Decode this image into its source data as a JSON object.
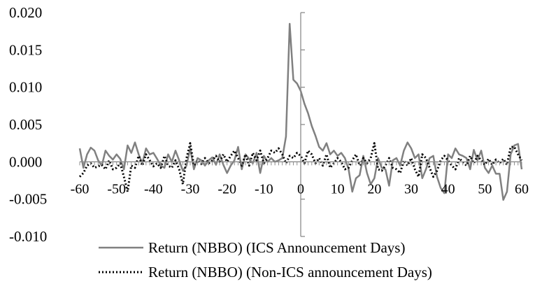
{
  "chart_data": {
    "type": "line",
    "title": "",
    "xlabel": "",
    "ylabel": "",
    "xlim": [
      -60,
      60
    ],
    "ylim": [
      -0.01,
      0.02
    ],
    "x_ticks": [
      -60,
      -50,
      -40,
      -30,
      -20,
      -10,
      0,
      10,
      20,
      30,
      40,
      50,
      60
    ],
    "y_ticks": [
      "0.020",
      "0.015",
      "0.010",
      "0.005",
      "0.000",
      "-0.005",
      "-0.010"
    ],
    "y_tick_values": [
      0.02,
      0.015,
      0.01,
      0.005,
      0.0,
      -0.005,
      -0.01
    ],
    "legend_position": "bottom",
    "series": [
      {
        "name": "Return (NBBO) (ICS Announcement Days)",
        "style": "solid",
        "color": "#808080",
        "x": [
          -60,
          -59,
          -58,
          -57,
          -56,
          -55,
          -54,
          -53,
          -52,
          -51,
          -50,
          -49,
          -48,
          -47,
          -46,
          -45,
          -44,
          -43,
          -42,
          -41,
          -40,
          -39,
          -38,
          -37,
          -36,
          -35,
          -34,
          -33,
          -32,
          -31,
          -30,
          -29,
          -28,
          -27,
          -26,
          -25,
          -24,
          -23,
          -22,
          -21,
          -20,
          -19,
          -18,
          -17,
          -16,
          -15,
          -14,
          -13,
          -12,
          -11,
          -10,
          -9,
          -8,
          -7,
          -6,
          -5,
          -4,
          -3,
          -2,
          -1,
          0,
          1,
          2,
          3,
          4,
          5,
          6,
          7,
          8,
          9,
          10,
          11,
          12,
          13,
          14,
          15,
          16,
          17,
          18,
          19,
          20,
          21,
          22,
          23,
          24,
          25,
          26,
          27,
          28,
          29,
          30,
          31,
          32,
          33,
          34,
          35,
          36,
          37,
          38,
          39,
          40,
          41,
          42,
          43,
          44,
          45,
          46,
          47,
          48,
          49,
          50,
          51,
          52,
          53,
          54,
          55,
          56,
          57,
          58,
          59,
          60
        ],
        "values": [
          0.0018,
          -0.0008,
          0.001,
          0.0019,
          0.0015,
          0.0002,
          -0.0005,
          0.0015,
          0.0008,
          0.0003,
          0.001,
          0.0004,
          -0.001,
          0.0022,
          0.0012,
          0.0026,
          0.001,
          -0.0002,
          0.0018,
          0.001,
          0.0012,
          0.0004,
          -0.0005,
          -0.0008,
          0.001,
          0.0,
          0.0015,
          0.0002,
          -0.0012,
          -0.0005,
          0.0018,
          -0.001,
          0.0005,
          0.0002,
          -0.0005,
          0.0002,
          0.0006,
          -0.0004,
          0.001,
          -0.0004,
          -0.0015,
          -0.0005,
          0.0002,
          0.002,
          -0.001,
          0.001,
          0.0004,
          -0.0002,
          0.0012,
          -0.0015,
          0.0008,
          0.0,
          0.0005,
          0.0,
          0.0002,
          0.0005,
          0.0034,
          0.0185,
          0.011,
          0.0105,
          0.0095,
          0.0078,
          0.0065,
          0.0048,
          0.0035,
          0.002,
          0.0015,
          0.0025,
          0.001,
          0.0015,
          0.0008,
          0.0012,
          0.0005,
          -0.001,
          -0.004,
          -0.0022,
          -0.0018,
          0.0008,
          -0.0015,
          -0.003,
          -0.0022,
          0.0005,
          -0.0008,
          -0.001,
          -0.0032,
          0.0002,
          0.0005,
          -0.0005,
          0.0015,
          0.0026,
          0.0018,
          0.0005,
          0.001,
          -0.0022,
          -0.001,
          0.0005,
          0.0008,
          -0.002,
          -0.0035,
          -0.0042,
          0.001,
          0.0005,
          0.0018,
          0.001,
          0.0008,
          0.0005,
          -0.001,
          0.0016,
          0.0002,
          0.0015,
          -0.0008,
          -0.0015,
          -0.0005,
          -0.0016,
          -0.0016,
          -0.0051,
          -0.004,
          0.001,
          0.0022,
          0.0024,
          -0.001
        ]
      },
      {
        "name": "Return (NBBO) (Non-ICS announcement Days)",
        "style": "dotted",
        "color": "#000000",
        "x": [
          -60,
          -59,
          -58,
          -57,
          -56,
          -55,
          -54,
          -53,
          -52,
          -51,
          -50,
          -49,
          -48,
          -47,
          -46,
          -45,
          -44,
          -43,
          -42,
          -41,
          -40,
          -39,
          -38,
          -37,
          -36,
          -35,
          -34,
          -33,
          -32,
          -31,
          -30,
          -29,
          -28,
          -27,
          -26,
          -25,
          -24,
          -23,
          -22,
          -21,
          -20,
          -19,
          -18,
          -17,
          -16,
          -15,
          -14,
          -13,
          -12,
          -11,
          -10,
          -9,
          -8,
          -7,
          -6,
          -5,
          -4,
          -3,
          -2,
          -1,
          0,
          1,
          2,
          3,
          4,
          5,
          6,
          7,
          8,
          9,
          10,
          11,
          12,
          13,
          14,
          15,
          16,
          17,
          18,
          19,
          20,
          21,
          22,
          23,
          24,
          25,
          26,
          27,
          28,
          29,
          30,
          31,
          32,
          33,
          34,
          35,
          36,
          37,
          38,
          39,
          40,
          41,
          42,
          43,
          44,
          45,
          46,
          47,
          48,
          49,
          50,
          51,
          52,
          53,
          54,
          55,
          56,
          57,
          58,
          59,
          60
        ],
        "values": [
          -0.002,
          -0.0015,
          -0.0005,
          -0.0002,
          -0.0008,
          -0.0006,
          -0.0004,
          -0.001,
          0.0002,
          -0.001,
          -0.0008,
          -0.0002,
          -0.002,
          -0.004,
          -0.0005,
          -0.0008,
          0.0008,
          -0.0005,
          0.001,
          0.0002,
          -0.0006,
          -0.0002,
          -0.0008,
          0.0008,
          -0.0005,
          -0.0008,
          0.0002,
          -0.001,
          -0.003,
          0.0005,
          0.0025,
          -0.0005,
          0.0002,
          -0.0003,
          0.0005,
          -0.0002,
          0.0002,
          0.0008,
          0.0,
          0.001,
          0.0,
          0.0008,
          0.0015,
          0.0005,
          -0.0005,
          0.001,
          -0.0005,
          0.0012,
          0.0002,
          0.0015,
          -0.0002,
          0.0005,
          0.0015,
          0.0012,
          0.0018,
          0.001,
          -0.0002,
          0.0008,
          0.0005,
          0.0012,
          0.0008,
          -0.0002,
          0.0015,
          0.001,
          -0.0002,
          0.0005,
          -0.0005,
          0.001,
          -0.0008,
          -0.0002,
          0.0005,
          0.0,
          -0.001,
          -0.0008,
          0.0002,
          0.001,
          -0.0005,
          0.0005,
          -0.0002,
          0.0005,
          0.0025,
          -0.001,
          -0.0012,
          -0.0005,
          0.0005,
          -0.0008,
          -0.001,
          -0.0015,
          0.0002,
          -0.0005,
          0.0005,
          -0.001,
          -0.002,
          0.001,
          0.0005,
          -0.0008,
          -0.002,
          -0.0012,
          0.0002,
          0.0008,
          0.0002,
          -0.0005,
          -0.001,
          0.0005,
          0.0,
          -0.0005,
          0.0008,
          -0.0002,
          0.0008,
          0.0002,
          -0.0004,
          0.0004,
          -0.0004,
          0.0003,
          -0.0002,
          0.0004,
          -0.0004,
          0.002,
          0.002,
          0.001,
          0.0002
        ]
      }
    ]
  }
}
